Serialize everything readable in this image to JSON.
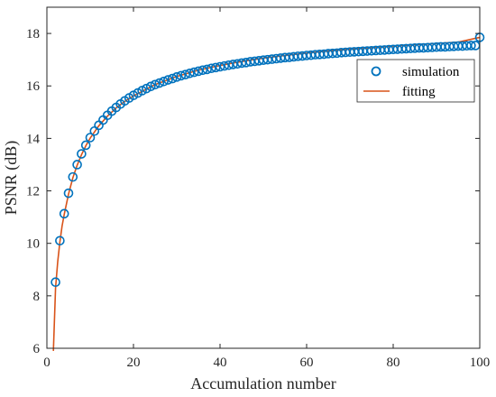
{
  "chart_data": {
    "type": "scatter",
    "title": "",
    "xlabel": "Accumulation number",
    "ylabel": "PSNR (dB)",
    "xlim": [
      0,
      100
    ],
    "ylim": [
      6,
      19
    ],
    "xticks": [
      0,
      20,
      40,
      60,
      80,
      100
    ],
    "yticks": [
      6,
      8,
      10,
      12,
      14,
      16,
      18
    ],
    "grid": false,
    "legend_position": "top-right",
    "series": [
      {
        "name": "simulation",
        "kind": "markers",
        "marker": "circle",
        "color": "#0072BD",
        "x": [
          2,
          3,
          4,
          5,
          6,
          7,
          8,
          9,
          10,
          11,
          12,
          13,
          14,
          15,
          16,
          17,
          18,
          19,
          20,
          21,
          22,
          23,
          24,
          25,
          26,
          27,
          28,
          29,
          30,
          31,
          32,
          33,
          34,
          35,
          36,
          37,
          38,
          39,
          40,
          41,
          42,
          43,
          44,
          45,
          46,
          47,
          48,
          49,
          50,
          51,
          52,
          53,
          54,
          55,
          56,
          57,
          58,
          59,
          60,
          61,
          62,
          63,
          64,
          65,
          66,
          67,
          68,
          69,
          70,
          71,
          72,
          73,
          74,
          75,
          76,
          77,
          78,
          79,
          80,
          81,
          82,
          83,
          84,
          85,
          86,
          87,
          88,
          89,
          90,
          91,
          92,
          93,
          94,
          95,
          96,
          97,
          98,
          99,
          100
        ],
        "y": [
          8.52,
          10.1,
          11.13,
          11.91,
          12.53,
          13.0,
          13.41,
          13.74,
          14.03,
          14.28,
          14.5,
          14.7,
          14.88,
          15.04,
          15.18,
          15.31,
          15.43,
          15.54,
          15.64,
          15.73,
          15.82,
          15.9,
          15.98,
          16.05,
          16.11,
          16.17,
          16.23,
          16.28,
          16.34,
          16.39,
          16.43,
          16.48,
          16.52,
          16.56,
          16.6,
          16.63,
          16.67,
          16.7,
          16.73,
          16.76,
          16.79,
          16.82,
          16.84,
          16.87,
          16.89,
          16.92,
          16.94,
          16.96,
          16.98,
          17.0,
          17.02,
          17.04,
          17.06,
          17.08,
          17.09,
          17.11,
          17.13,
          17.14,
          17.16,
          17.17,
          17.19,
          17.2,
          17.21,
          17.23,
          17.24,
          17.25,
          17.27,
          17.28,
          17.29,
          17.3,
          17.31,
          17.32,
          17.33,
          17.34,
          17.35,
          17.36,
          17.37,
          17.38,
          17.39,
          17.4,
          17.41,
          17.42,
          17.43,
          17.44,
          17.45,
          17.45,
          17.46,
          17.47,
          17.48,
          17.49,
          17.49,
          17.5,
          17.51,
          17.52,
          17.52,
          17.53,
          17.54,
          17.54,
          17.85
        ]
      },
      {
        "name": "fitting",
        "kind": "line",
        "color": "#D95319",
        "x": [
          1.5,
          2,
          2.5,
          3,
          3.5,
          4,
          5,
          6,
          7,
          8,
          9,
          10,
          12,
          14,
          16,
          18,
          20,
          25,
          30,
          35,
          40,
          45,
          50,
          55,
          60,
          65,
          70,
          75,
          80,
          85,
          90,
          95,
          100
        ],
        "y": [
          5.9,
          8.3,
          9.3,
          10.05,
          10.65,
          11.1,
          11.88,
          12.5,
          12.98,
          13.38,
          13.72,
          14.01,
          14.48,
          14.85,
          15.16,
          15.41,
          15.62,
          16.05,
          16.36,
          16.6,
          16.78,
          16.93,
          17.06,
          17.16,
          17.25,
          17.33,
          17.4,
          17.46,
          17.52,
          17.57,
          17.62,
          17.67,
          17.85
        ]
      }
    ]
  }
}
